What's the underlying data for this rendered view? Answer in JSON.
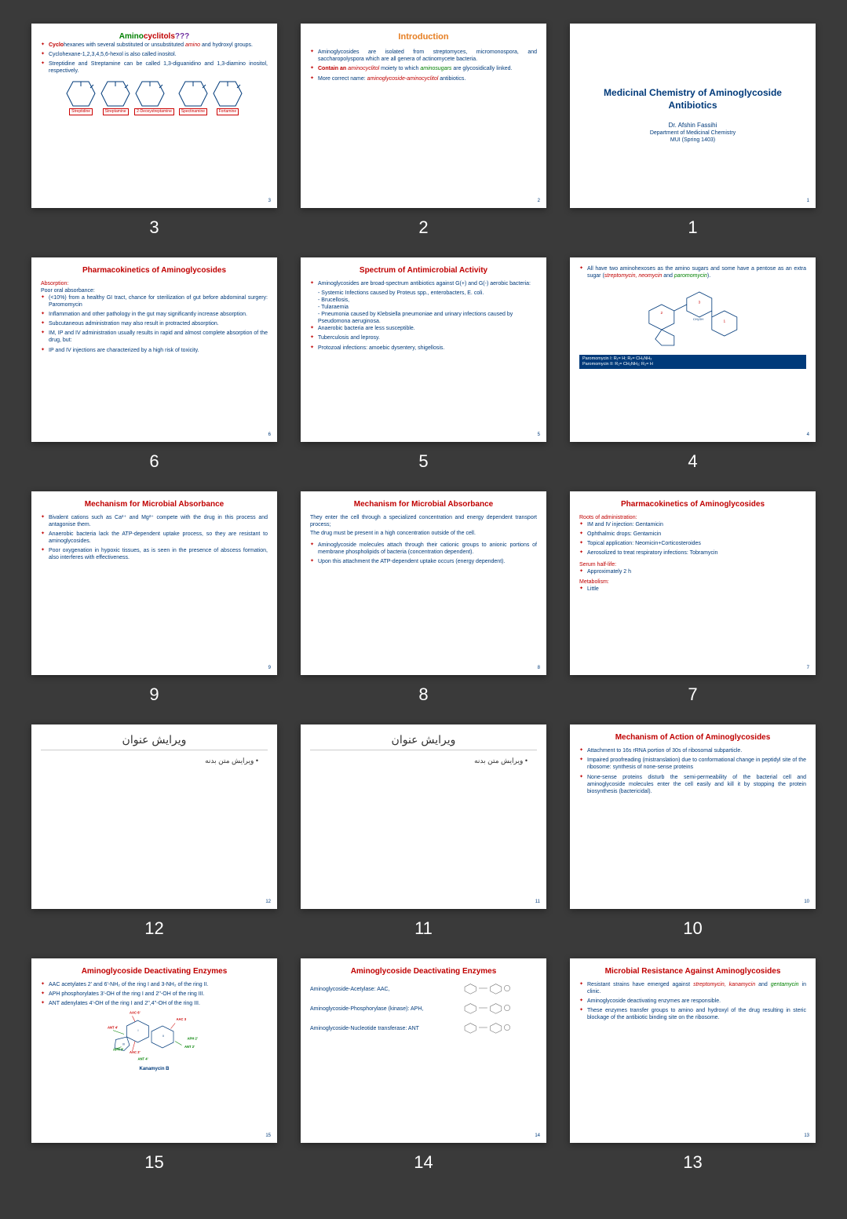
{
  "slides": [
    {
      "n": "3",
      "title": "Amino",
      "t2": "cyclitols",
      "t3": "???",
      "body": [
        {
          "pre": "Cyclo",
          "t": "hexanes with several substituted or unsubstituted ",
          "mid": "amino",
          "post": " and hydroxyl groups."
        },
        {
          "t": "Cyclohexane-1,2,3,4,5,6-hexol is also called inositol."
        },
        {
          "t": "Streptidine and Streptamine can be called 1,3-diguanidino and 1,3-diamino inositol, respectively."
        }
      ],
      "diag": "hexgrid",
      "labels": [
        "Streptidine",
        "Streptamine",
        "2-Deoxystreptamine",
        "Spectinamine",
        "Fortamine"
      ]
    },
    {
      "n": "2",
      "title": "Introduction",
      "titleClass": "orange",
      "body": [
        {
          "t": "Aminoglycosides are isolated from streptomyces, micromonospora, and saccharopolyspora which are all genera of actinomycete bacteria."
        },
        {
          "pre": "Contain an ",
          "mid": "aminocyclitol",
          "post": " moiety to which ",
          "mid2": "aminosugars",
          "post2": " are glycosidically linked."
        },
        {
          "t": "More correct name: ",
          "mid": "aminoglycoside-aminocyclitol",
          "post": " antibiotics."
        }
      ]
    },
    {
      "n": "1",
      "title": "Medicinal Chemistry of Aminoglycoside Antibiotics",
      "author": "Dr. Afshin Fassihi",
      "dept": "Department of Medicinal Chemistry",
      "inst": "MUI (Spring 1403)",
      "type": "title"
    },
    {
      "n": "6",
      "title": "Pharmacokinetics of Aminoglycosides",
      "titleClass": "red",
      "sub": "Absorption:",
      "sub2": "Poor oral absorbance:",
      "body": [
        {
          "t": "(<10%) from a healthy GI tract, chance for sterilization of gut before abdominal surgery: Paromomycin"
        },
        {
          "t": "Inflammation and other pathology in the gut may significantly increase absorption."
        },
        {
          "t": "Subcutaneous administration may also result in protracted absorption."
        },
        {
          "t": "IM, IP and IV administration usually results in rapid and almost complete absorption of the drug, but:"
        },
        {
          "t": "IP and IV injections are characterized by a high risk of toxicity."
        }
      ]
    },
    {
      "n": "5",
      "title": "Spectrum of Antimicrobial Activity",
      "titleClass": "red",
      "body": [
        {
          "t": "Aminoglycosides are broad-spectrum antibiotics against G(+) and G(-) aerobic bacteria:"
        },
        {
          "t": "Systemic Infections caused by Proteus spp., enterobacters, E. coli.",
          "dash": true
        },
        {
          "t": "Brucellosis,",
          "dash": true
        },
        {
          "t": "Tularaemia",
          "dash": true
        },
        {
          "t": "Pneumonia caused by Klebsiella pneumoniae and urinary infections caused by Pseudomona aeruginosa.",
          "dash": true
        },
        {
          "t": "Anaerobic bacteria are less susceptible."
        },
        {
          "t": "Tuberculosis and leprosy."
        },
        {
          "t": "Protozoal infections: amoebic dysentery, shigellosis."
        }
      ]
    },
    {
      "n": "4",
      "body": [
        {
          "t": "All have two aminohexoses as the amino sugars and some have a pentose as an extra sugar (",
          "mid": "streptomycin, neomycin",
          "post": " and ",
          "mid2": "paromomycin",
          "post2": ")."
        }
      ],
      "diag": "chem",
      "footer": "Paromomycin I: R₁= H; R₂= CH₂NH₂\nParomomycin II: R₁= CH₂NH₂; R₂= H"
    },
    {
      "n": "9",
      "title": "Mechanism for Microbial Absorbance",
      "titleClass": "red",
      "body": [
        {
          "t": "Bivalent cations such as Ca²⁺ and Mg²⁺ compete with the drug in this process and antagonise them."
        },
        {
          "t": "Anaerobic bacteria lack the ATP-dependent uptake process, so they are resistant to aminoglycosides."
        },
        {
          "t": "Poor oxygenation in hypoxic tissues, as is seen in the presence of abscess formation, also interferes with effectiveness."
        }
      ]
    },
    {
      "n": "8",
      "title": "Mechanism for Microbial Absorbance",
      "titleClass": "red",
      "intro": "They enter the cell through a specialized concentration and energy dependent transport process;",
      "intro2": "The drug must be present in a high concentration outside of the cell.",
      "body": [
        {
          "t": "Aminoglycoside molecules attach through their cationic groups to anionic portions of membrane phospholipids of bacteria (concentration dependent)."
        },
        {
          "t": "Upon this attachment the ATP-dependent uptake occurs (energy dependent)."
        }
      ]
    },
    {
      "n": "7",
      "title": "Pharmacokinetics of Aminoglycosides",
      "titleClass": "red",
      "sub": "Roots of administration:",
      "body": [
        {
          "t": "IM and IV injection: Gentamicin"
        },
        {
          "t": "Ophthalmic drops: Gentamicin"
        },
        {
          "t": "Topical application: Neomicin+Corticosteroides"
        },
        {
          "t": "Aerosolized to treat respiratory infections: Tobramycin"
        }
      ],
      "sub3": "Serum half-life:",
      "body2": [
        {
          "t": "Approximately 2 h"
        }
      ],
      "sub4": "Metabolism:",
      "body3": [
        {
          "t": "Little"
        }
      ]
    },
    {
      "n": "12",
      "type": "rtl",
      "title": "ویرایش عنوان",
      "body": "ویرایش متن بدنه"
    },
    {
      "n": "11",
      "type": "rtl",
      "title": "ویرایش عنوان",
      "body": "ویرایش متن بدنه"
    },
    {
      "n": "10",
      "title": "Mechanism of Action of Aminoglycosides",
      "titleClass": "red",
      "body": [
        {
          "t": "Attachment to 16s rRNA portion of 30s of ribosomal subparticle."
        },
        {
          "t": "Impaired proofreading (mistranslation) due to conformational change in peptidyl site of the ribosome: synthesis of none-sense proteins"
        },
        {
          "t": "None-sense proteins disturb the semi-permeability of the bacterial cell and aminoglycoside molecules enter the cell easily and kill it by stopping the protein biosynthesis (bactericidal)."
        }
      ]
    },
    {
      "n": "15",
      "title": "Aminoglycoside Deactivating Enzymes",
      "titleClass": "red",
      "body": [
        {
          "t": "AAC acetylates 2' and 6'-NH₂ of the ring I and 3-NH₂ of the ring II."
        },
        {
          "t": "APH phosphorylates 3'-OH of the ring I and 2''-OH of the ring III."
        },
        {
          "t": "ANT adenylates 4'-OH of the ring I and 2'',4''-OH of the ring III."
        }
      ],
      "diag": "kanamycin",
      "diagLabel": "Kanamycin B",
      "annots": [
        "AAC 6'",
        "AAC 3",
        "ANT 4'",
        "APH 3'",
        "AAC 2'",
        "ANT 4'",
        "ANT 2'",
        "APH 2'"
      ]
    },
    {
      "n": "14",
      "title": "Aminoglycoside Deactivating Enzymes",
      "titleClass": "red",
      "enz": [
        {
          "l": "Aminoglycoside-Acetylase: AAC,"
        },
        {
          "l": "Aminoglycoside-Phosphorylase (kinase): APH,"
        },
        {
          "l": "Aminoglycoside-Nucleotide transferase: ANT"
        }
      ]
    },
    {
      "n": "13",
      "title": "Microbial Resistance Against Aminoglycosides",
      "titleClass": "red",
      "body": [
        {
          "t": "Resistant strains have emerged against ",
          "mid": "streptomycin, kanamycin",
          "post": " and ",
          "mid2": "gentamycin",
          "post2": " in clinic."
        },
        {
          "t": "Aminoglycoside deactivating enzymes are responsible."
        },
        {
          "t": "These enzymes transfer groups to amino and hydroxyl of the drug resulting in steric blockage of the antibiotic binding site on the ribosome."
        }
      ]
    }
  ]
}
